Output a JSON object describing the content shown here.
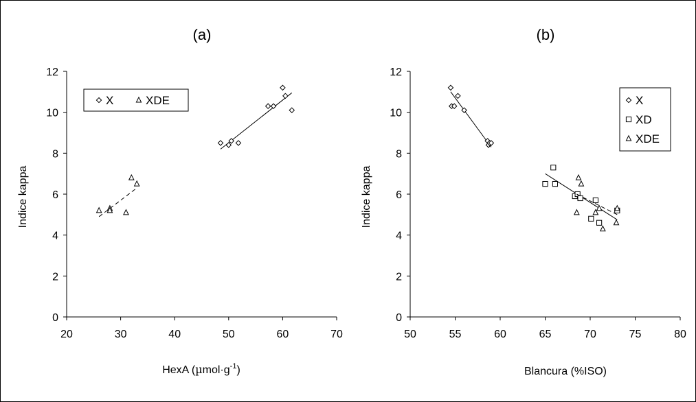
{
  "chart_data": [
    {
      "type": "scatter",
      "title": "(a)",
      "xlabel": "HexA (µmol·g-1)",
      "xlabel_main": "HexA (",
      "xlabel_mu": "µ",
      "xlabel_unit": "mol·g",
      "xlabel_sup": "-1",
      "xlabel_close": ")",
      "ylabel": "Indice kappa",
      "xlim": [
        20,
        70
      ],
      "ylim": [
        0,
        12
      ],
      "xticks": [
        20,
        30,
        40,
        50,
        60,
        70
      ],
      "yticks": [
        0,
        2,
        4,
        6,
        8,
        10,
        12
      ],
      "grid": false,
      "legend": {
        "placement": "top-left",
        "layout": "horizontal"
      },
      "series": [
        {
          "name": "X",
          "marker": "diamond",
          "points": [
            [
              48.5,
              8.5
            ],
            [
              50,
              8.4
            ],
            [
              50.5,
              8.6
            ],
            [
              51.8,
              8.5
            ],
            [
              57.3,
              10.3
            ],
            [
              58.3,
              10.3
            ],
            [
              60,
              11.2
            ],
            [
              60.5,
              10.8
            ],
            [
              61.7,
              10.1
            ]
          ],
          "trendline": {
            "style": "solid",
            "x": [
              48.5,
              61.7
            ],
            "y": [
              8.2,
              10.95
            ]
          }
        },
        {
          "name": "XDE",
          "marker": "triangle",
          "points": [
            [
              26,
              5.2
            ],
            [
              28,
              5.3
            ],
            [
              28,
              5.2
            ],
            [
              31,
              5.1
            ],
            [
              32,
              6.8
            ],
            [
              33,
              6.5
            ]
          ],
          "trendline": {
            "style": "dashed",
            "x": [
              26,
              33
            ],
            "y": [
              4.9,
              6.3
            ]
          }
        }
      ]
    },
    {
      "type": "scatter",
      "title": "(b)",
      "xlabel": "Blancura (%ISO)",
      "ylabel": "Indice kappa",
      "xlim": [
        50,
        80
      ],
      "ylim": [
        0,
        12
      ],
      "xticks": [
        50,
        55,
        60,
        65,
        70,
        75,
        80
      ],
      "yticks": [
        0,
        2,
        4,
        6,
        8,
        10,
        12
      ],
      "grid": false,
      "legend": {
        "placement": "top-right",
        "layout": "vertical"
      },
      "series": [
        {
          "name": "X",
          "marker": "diamond",
          "points": [
            [
              54.5,
              11.2
            ],
            [
              54.6,
              10.3
            ],
            [
              54.9,
              10.3
            ],
            [
              55.3,
              10.8
            ],
            [
              56.0,
              10.1
            ],
            [
              58.6,
              8.6
            ],
            [
              58.7,
              8.4
            ],
            [
              58.8,
              8.5
            ],
            [
              59.0,
              8.5
            ]
          ],
          "trendline": {
            "style": "solid",
            "x": [
              54.5,
              59.0
            ],
            "y": [
              11.0,
              8.3
            ]
          }
        },
        {
          "name": "XD",
          "marker": "square",
          "points": [
            [
              65,
              6.5
            ],
            [
              65.9,
              7.3
            ],
            [
              66.1,
              6.5
            ],
            [
              68.3,
              5.9
            ],
            [
              68.6,
              6.0
            ],
            [
              68.9,
              5.8
            ],
            [
              70.1,
              4.8
            ],
            [
              70.6,
              5.7
            ],
            [
              71.0,
              4.6
            ],
            [
              73.0,
              5.2
            ]
          ],
          "trendline": {
            "style": "solid",
            "x": [
              65,
              73
            ],
            "y": [
              7.0,
              4.75
            ]
          }
        },
        {
          "name": "XDE",
          "marker": "triangle",
          "points": [
            [
              68.5,
              5.1
            ],
            [
              68.7,
              6.8
            ],
            [
              69.0,
              6.5
            ],
            [
              70.6,
              5.1
            ],
            [
              71.0,
              5.3
            ],
            [
              71.4,
              4.3
            ],
            [
              72.9,
              4.6
            ],
            [
              73.0,
              5.3
            ]
          ],
          "trendline": {
            "style": "dashed",
            "x": [
              68.5,
              73.0
            ],
            "y": [
              6.0,
              5.0
            ]
          }
        }
      ]
    }
  ]
}
